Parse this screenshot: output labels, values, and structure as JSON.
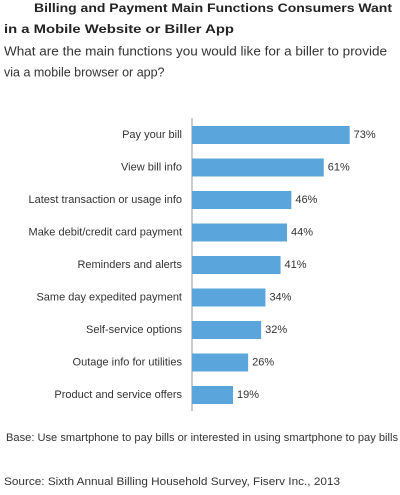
{
  "chart_data": {
    "type": "bar",
    "orientation": "horizontal",
    "title": [
      "Billing and Payment Main Functions Consumers Want",
      "in a Mobile Website or Biller App"
    ],
    "subtitle": [
      "What are the main functions you would like for a biller to provide",
      "via a mobile browser or app?"
    ],
    "categories": [
      "Pay your bill",
      "View bill info",
      "Latest transaction or usage info",
      "Make debit/credit card payment",
      "Reminders and alerts",
      "Same day expedited payment",
      "Self-service options",
      "Outage info for utilities",
      "Product and service offers"
    ],
    "values": [
      73,
      61,
      46,
      44,
      41,
      34,
      32,
      26,
      19
    ],
    "value_labels": [
      "73%",
      "61%",
      "46%",
      "44%",
      "41%",
      "34%",
      "32%",
      "26%",
      "19%"
    ],
    "color": "#5aa5dc",
    "xlim": [
      0,
      100
    ],
    "note": "Base: Use smartphone to pay bills or interested in using smartphone to pay bills",
    "source": "Source: Sixth Annual Billing Household Survey, Fiserv Inc., 2013"
  }
}
